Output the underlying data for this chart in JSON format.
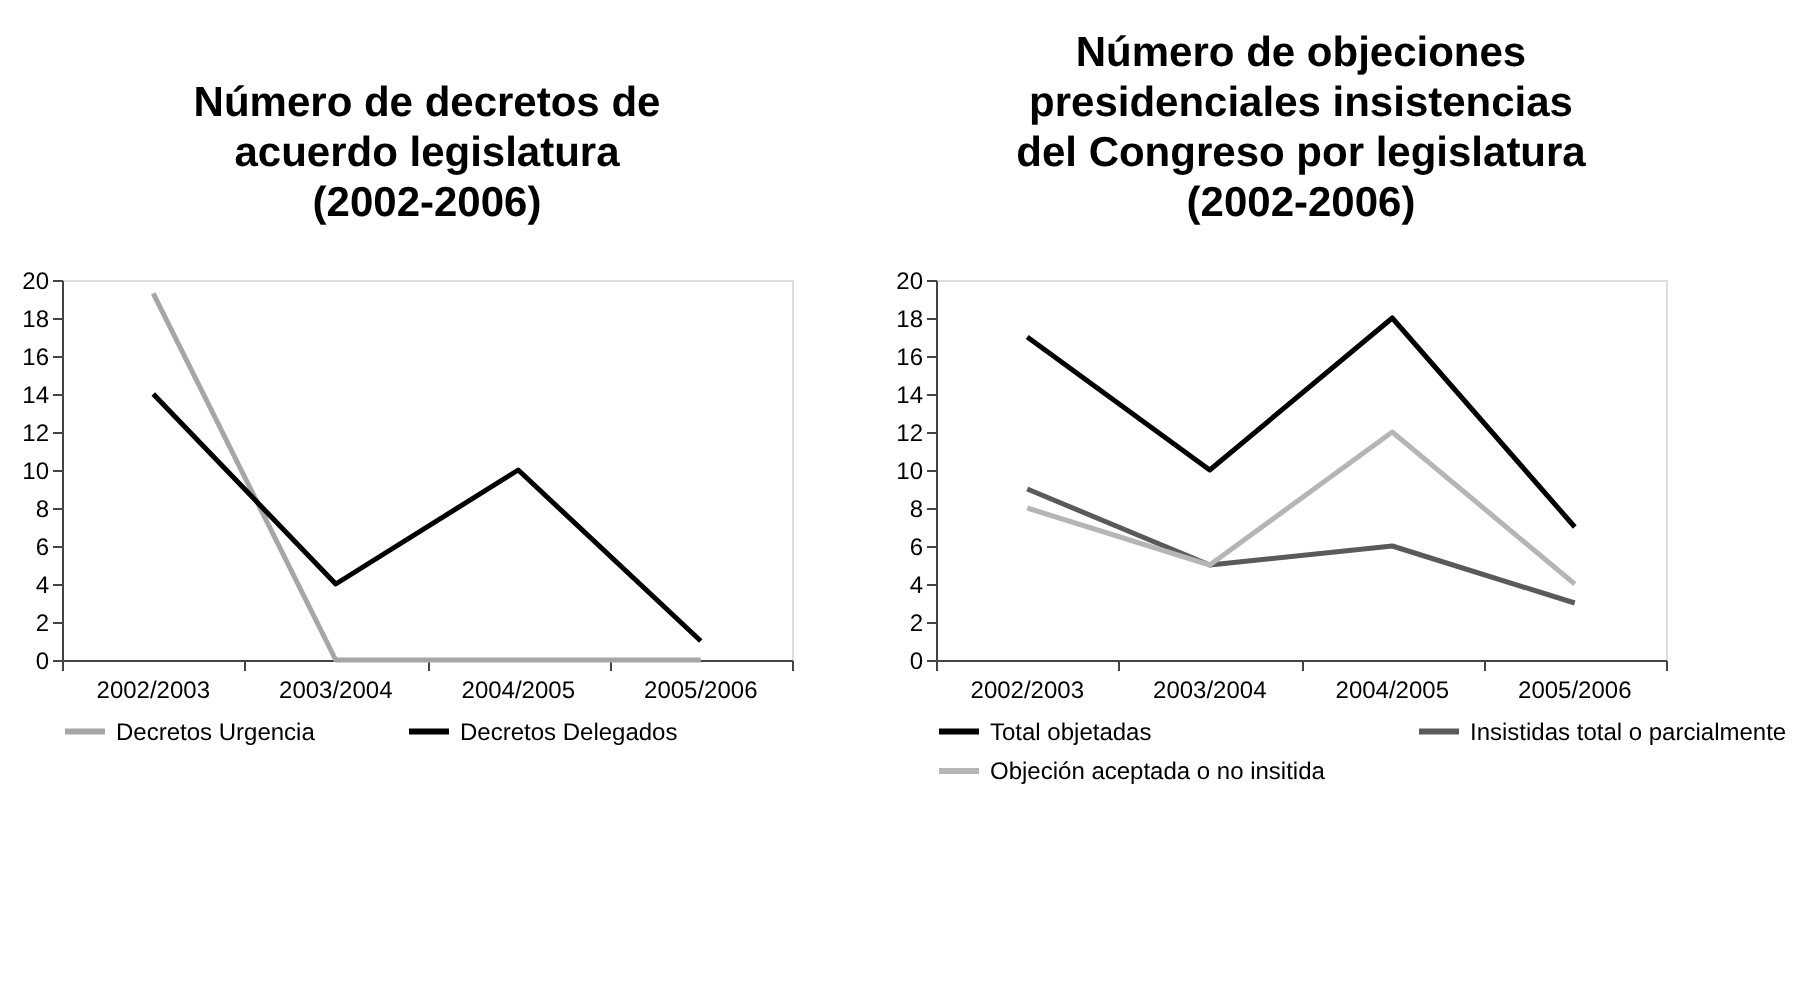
{
  "chart_data": [
    {
      "type": "line",
      "title": "Número de decretos de\nacuerdo legislatura\n(2002-2006)",
      "categories": [
        "2002/2003",
        "2003/2004",
        "2004/2005",
        "2005/2006"
      ],
      "series": [
        {
          "name": "Decretos Urgencia",
          "color": "#a6a6a6",
          "values": [
            19.3,
            0,
            0,
            0
          ]
        },
        {
          "name": "Decretos Delegados",
          "color": "#000000",
          "values": [
            14,
            4,
            10,
            1
          ]
        }
      ],
      "ylim": [
        0,
        20
      ],
      "yticks": [
        0,
        2,
        4,
        6,
        8,
        10,
        12,
        14,
        16,
        18,
        20
      ],
      "grid": false,
      "legend": "bottom",
      "marker": "none",
      "line_style": "solid"
    },
    {
      "type": "line",
      "title": "Número de objeciones\npresidenciales insistencias\ndel Congreso por legislatura\n(2002-2006)",
      "categories": [
        "2002/2003",
        "2003/2004",
        "2004/2005",
        "2005/2006"
      ],
      "series": [
        {
          "name": "Total objetadas",
          "color": "#000000",
          "values": [
            17,
            10,
            18,
            7
          ]
        },
        {
          "name": "Insistidas total o parcialmente",
          "color": "#5a5a5a",
          "values": [
            9,
            5,
            6,
            3
          ]
        },
        {
          "name": "Objeción aceptada o no insitida",
          "color": "#b5b5b5",
          "values": [
            8,
            5,
            12,
            4
          ]
        }
      ],
      "ylim": [
        0,
        20
      ],
      "yticks": [
        0,
        2,
        4,
        6,
        8,
        10,
        12,
        14,
        16,
        18,
        20
      ],
      "grid": false,
      "legend": "bottom",
      "marker": "none",
      "line_style": "solid"
    }
  ]
}
